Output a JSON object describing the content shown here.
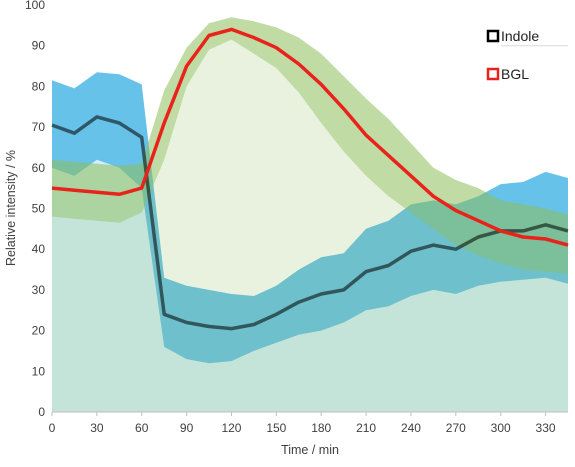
{
  "chart_data": {
    "type": "area",
    "title": "",
    "xlabel": "Time / min",
    "ylabel": "Relative intensity / %",
    "xlim": [
      0,
      345
    ],
    "ylim": [
      0,
      100
    ],
    "xticks": [
      0,
      30,
      60,
      90,
      120,
      150,
      180,
      210,
      240,
      270,
      300,
      330
    ],
    "yticks": [
      0,
      10,
      20,
      30,
      40,
      50,
      60,
      70,
      80,
      90,
      100
    ],
    "grid": "horizontal only at 90 (partial line right of data)",
    "legend_position": "top-right",
    "series": [
      {
        "name": "Indole",
        "color": "#000000",
        "band_color": "#0a9ddc",
        "x": [
          0,
          15,
          30,
          45,
          60,
          75,
          90,
          105,
          120,
          135,
          150,
          165,
          180,
          195,
          210,
          225,
          240,
          255,
          270,
          285,
          300,
          315,
          330,
          345
        ],
        "y": [
          70.5,
          68.5,
          72.5,
          71,
          67.5,
          24,
          22,
          21,
          20.5,
          21.5,
          24,
          27,
          29,
          30,
          34.5,
          36,
          39.5,
          41,
          40,
          43,
          44.5,
          44.5,
          46,
          44.5
        ],
        "upper": [
          81.5,
          79.5,
          83.5,
          83,
          80.5,
          33,
          31,
          30,
          29,
          28.5,
          31,
          35,
          38,
          39,
          45,
          47,
          51,
          52,
          51,
          53,
          56,
          56.5,
          59,
          57.5
        ],
        "lower": [
          60,
          58,
          62,
          60,
          55,
          16,
          13,
          12,
          12.5,
          15,
          17,
          19,
          20,
          22,
          25,
          26,
          28.5,
          30,
          29,
          31,
          32,
          32.5,
          33,
          31.5
        ]
      },
      {
        "name": "BGL",
        "color": "#e8231c",
        "band_color": "#8cbf5a",
        "x": [
          0,
          15,
          30,
          45,
          60,
          75,
          90,
          105,
          120,
          135,
          150,
          165,
          180,
          195,
          210,
          225,
          240,
          255,
          270,
          285,
          300,
          315,
          330,
          345
        ],
        "y": [
          55,
          54.5,
          54,
          53.5,
          55,
          71,
          85,
          92.5,
          94,
          92,
          89.5,
          85.5,
          80.5,
          74.5,
          68,
          63,
          58,
          53,
          49.5,
          47,
          44.5,
          43,
          42.5,
          41
        ],
        "upper": [
          62,
          61.5,
          61,
          60.5,
          61,
          79,
          89.5,
          95.5,
          97,
          96,
          94.5,
          92,
          88,
          82.5,
          77,
          72,
          66,
          60,
          57,
          55,
          52,
          51,
          50,
          48.5
        ],
        "lower": [
          48,
          47.5,
          47,
          46.5,
          49,
          62,
          80,
          89,
          91.5,
          88,
          84.5,
          78.5,
          71,
          64,
          58,
          53,
          49,
          45,
          41,
          38.5,
          36.5,
          35,
          34.5,
          34
        ]
      }
    ]
  }
}
